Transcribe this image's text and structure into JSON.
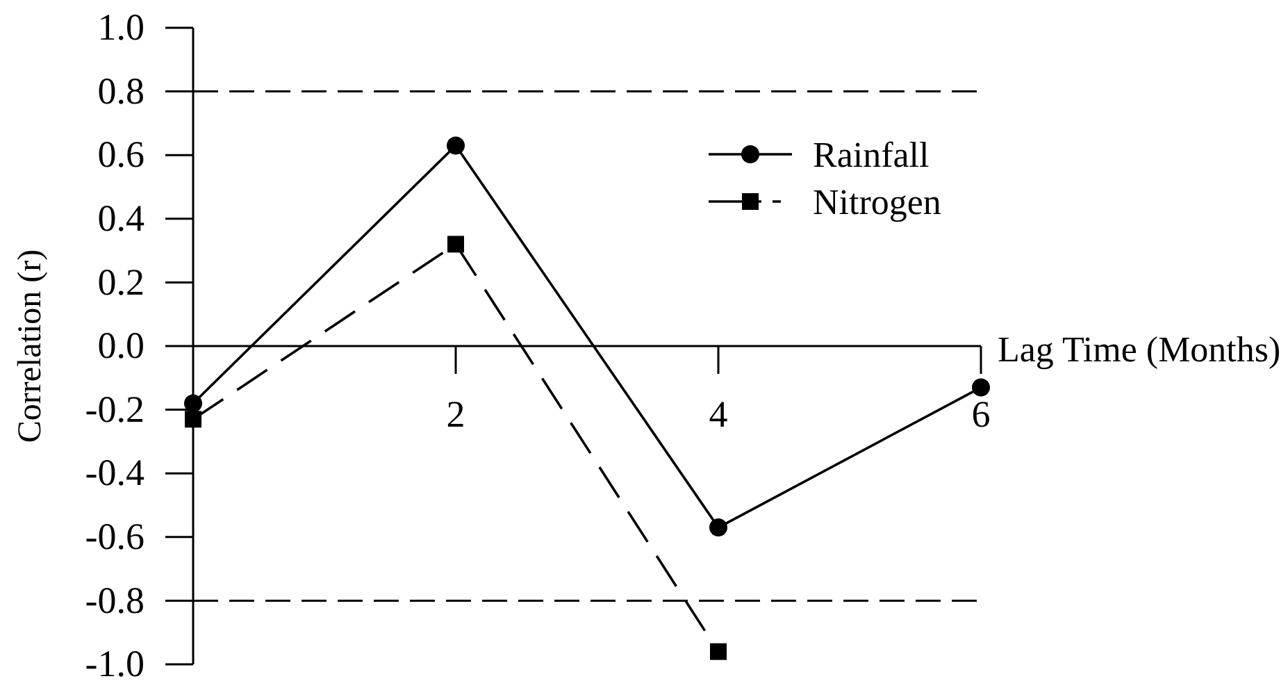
{
  "chart_data": {
    "type": "line",
    "xlabel": "Lag Time (Months)",
    "ylabel": "Correlation (r)",
    "xlim": [
      0,
      6
    ],
    "xticks": [
      2,
      4,
      6
    ],
    "ylim": [
      -1.0,
      1.0
    ],
    "yticks": [
      {
        "value": -1.0,
        "label": "-1.0"
      },
      {
        "value": -0.8,
        "label": "-0.8"
      },
      {
        "value": -0.6,
        "label": "-0.6"
      },
      {
        "value": -0.4,
        "label": "-0.4"
      },
      {
        "value": -0.2,
        "label": "-0.2"
      },
      {
        "value": 0,
        "label": "0.0"
      },
      {
        "value": 0.2,
        "label": "0.2"
      },
      {
        "value": 0.4,
        "label": "0.4"
      },
      {
        "value": 0.6,
        "label": "0.6"
      },
      {
        "value": 0.8,
        "label": "0.8"
      },
      {
        "value": 1.0,
        "label": "1.0"
      }
    ],
    "series": [
      {
        "name": "Rainfall",
        "color": "#000000",
        "marker": "circle",
        "line_style": "solid",
        "x": [
          0,
          2,
          4,
          6
        ],
        "values": [
          -0.18,
          0.63,
          -0.57,
          -0.13
        ]
      },
      {
        "name": "Nitrogen",
        "color": "#000000",
        "marker": "square",
        "line_style": "dashed",
        "x": [
          0,
          2,
          4
        ],
        "values": [
          -0.23,
          0.32,
          -0.96
        ]
      }
    ],
    "ref_lines": [
      {
        "axis": "y",
        "value": 0.8,
        "color": "#000000",
        "line_style": "dashed"
      },
      {
        "axis": "y",
        "value": -0.8,
        "color": "#000000",
        "line_style": "dashed"
      }
    ],
    "legend": "top right"
  }
}
